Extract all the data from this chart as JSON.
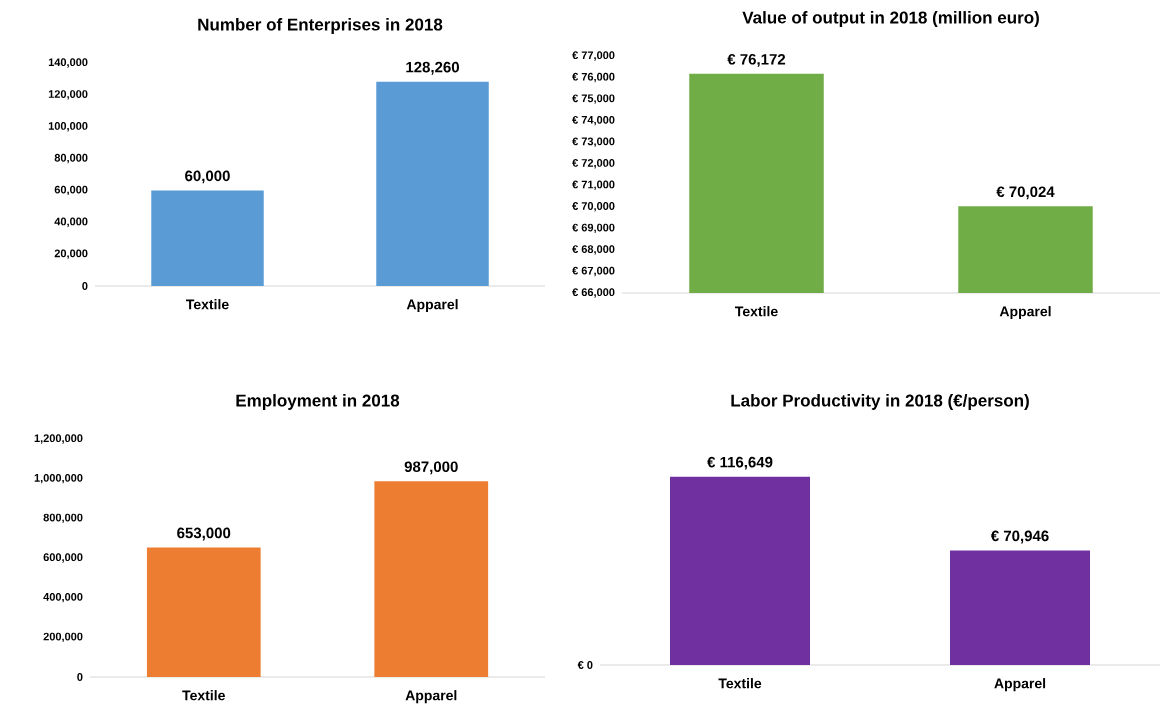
{
  "chart_data": [
    {
      "type": "bar",
      "title": "Number of Enterprises in 2018",
      "categories": [
        "Textile",
        "Apparel"
      ],
      "values": [
        60000,
        128260
      ],
      "color": "#5b9bd5",
      "value_labels": [
        "60,000",
        "128,260"
      ],
      "ylim": [
        0,
        140000
      ],
      "yticks": [
        0,
        {
          "value": 20000,
          "label": "20,000"
        },
        {
          "value": 40000,
          "label": "40,000"
        },
        {
          "value": 60000,
          "label": "60,000"
        },
        {
          "value": 80000,
          "label": "80,000"
        },
        {
          "value": 100000,
          "label": "100,000"
        },
        {
          "value": 120000,
          "label": "120,000"
        },
        {
          "value": 140000,
          "label": "140,000"
        }
      ]
    },
    {
      "type": "bar",
      "title": "Value of output in 2018 (million euro)",
      "categories": [
        "Textile",
        "Apparel"
      ],
      "values": [
        76172,
        70024
      ],
      "color": "#70ad47",
      "value_labels": [
        "€ 76,172",
        "€ 70,024"
      ],
      "ylim": [
        66000,
        77000
      ],
      "yticks": [
        {
          "value": 66000,
          "label": "€ 66,000"
        },
        {
          "value": 67000,
          "label": "€ 67,000"
        },
        {
          "value": 68000,
          "label": "€ 68,000"
        },
        {
          "value": 69000,
          "label": "€ 69,000"
        },
        {
          "value": 70000,
          "label": "€ 70,000"
        },
        {
          "value": 71000,
          "label": "€ 71,000"
        },
        {
          "value": 72000,
          "label": "€ 72,000"
        },
        {
          "value": 73000,
          "label": "€ 73,000"
        },
        {
          "value": 74000,
          "label": "€ 74,000"
        },
        {
          "value": 75000,
          "label": "€ 75,000"
        },
        {
          "value": 76000,
          "label": "€ 76,000"
        },
        {
          "value": 77000,
          "label": "€ 77,000"
        }
      ]
    },
    {
      "type": "bar",
      "title": "Employment in 2018",
      "categories": [
        "Textile",
        "Apparel"
      ],
      "values": [
        653000,
        987000
      ],
      "color": "#ed7d31",
      "value_labels": [
        "653,000",
        "987,000"
      ],
      "ylim": [
        0,
        1200000
      ],
      "yticks": [
        0,
        {
          "value": 200000,
          "label": "200,000"
        },
        {
          "value": 400000,
          "label": "400,000"
        },
        {
          "value": 600000,
          "label": "600,000"
        },
        {
          "value": 800000,
          "label": "800,000"
        },
        {
          "value": 1000000,
          "label": "1,000,000"
        },
        {
          "value": 1200000,
          "label": "1,200,000"
        }
      ]
    },
    {
      "type": "bar",
      "title": "Labor Productivity in 2018 (€/person)",
      "categories": [
        "Textile",
        "Apparel"
      ],
      "values": [
        116649,
        70946
      ],
      "color": "#7030a0",
      "value_labels": [
        "€ 116,649",
        "€ 70,946"
      ],
      "annotations": [
        "€ 0"
      ]
    }
  ]
}
